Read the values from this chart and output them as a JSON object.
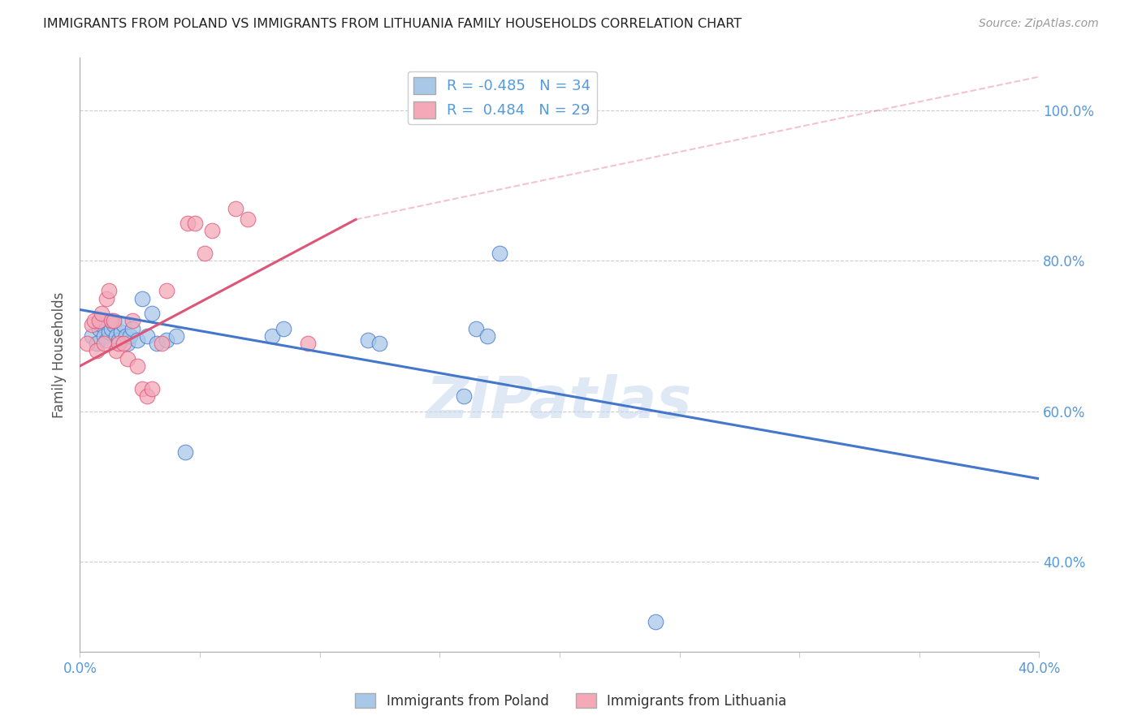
{
  "title": "IMMIGRANTS FROM POLAND VS IMMIGRANTS FROM LITHUANIA FAMILY HOUSEHOLDS CORRELATION CHART",
  "source": "Source: ZipAtlas.com",
  "ylabel": "Family Households",
  "legend_poland": "Immigrants from Poland",
  "legend_lithuania": "Immigrants from Lithuania",
  "R_poland": -0.485,
  "N_poland": 34,
  "R_lithuania": 0.484,
  "N_lithuania": 29,
  "xlim": [
    0.0,
    0.4
  ],
  "ylim": [
    0.28,
    1.07
  ],
  "yticks": [
    0.4,
    0.6,
    0.8,
    1.0
  ],
  "xticks": [
    0.0,
    0.05,
    0.1,
    0.15,
    0.2,
    0.25,
    0.3,
    0.35,
    0.4
  ],
  "color_poland": "#a8c8e8",
  "color_lithuania": "#f4a8b8",
  "color_trend_poland": "#4477cc",
  "color_trend_lithuania": "#dd5577",
  "color_axis_labels": "#5599dd",
  "poland_x": [
    0.005,
    0.007,
    0.008,
    0.009,
    0.01,
    0.011,
    0.012,
    0.013,
    0.014,
    0.015,
    0.016,
    0.017,
    0.018,
    0.019,
    0.02,
    0.021,
    0.022,
    0.024,
    0.026,
    0.028,
    0.03,
    0.032,
    0.036,
    0.04,
    0.044,
    0.08,
    0.085,
    0.12,
    0.125,
    0.16,
    0.165,
    0.17,
    0.175,
    0.24
  ],
  "poland_y": [
    0.7,
    0.69,
    0.71,
    0.715,
    0.7,
    0.695,
    0.705,
    0.71,
    0.715,
    0.7,
    0.695,
    0.705,
    0.715,
    0.7,
    0.69,
    0.7,
    0.71,
    0.695,
    0.75,
    0.7,
    0.73,
    0.69,
    0.695,
    0.7,
    0.545,
    0.7,
    0.71,
    0.695,
    0.69,
    0.62,
    0.71,
    0.7,
    0.81,
    0.32
  ],
  "lithuania_x": [
    0.003,
    0.005,
    0.006,
    0.007,
    0.008,
    0.009,
    0.01,
    0.011,
    0.012,
    0.013,
    0.014,
    0.015,
    0.016,
    0.018,
    0.02,
    0.022,
    0.024,
    0.026,
    0.028,
    0.03,
    0.034,
    0.036,
    0.045,
    0.048,
    0.052,
    0.055,
    0.065,
    0.07,
    0.095
  ],
  "lithuania_y": [
    0.69,
    0.715,
    0.72,
    0.68,
    0.72,
    0.73,
    0.69,
    0.75,
    0.76,
    0.72,
    0.72,
    0.68,
    0.69,
    0.69,
    0.67,
    0.72,
    0.66,
    0.63,
    0.62,
    0.63,
    0.69,
    0.76,
    0.85,
    0.85,
    0.81,
    0.84,
    0.87,
    0.855,
    0.69
  ],
  "trend_poland_x0": 0.0,
  "trend_poland_y0": 0.735,
  "trend_poland_x1": 0.4,
  "trend_poland_y1": 0.51,
  "trend_lith_solid_x0": 0.0,
  "trend_lith_solid_y0": 0.66,
  "trend_lith_solid_x1": 0.115,
  "trend_lith_solid_y1": 0.855,
  "trend_lith_dash_x0": 0.115,
  "trend_lith_dash_y0": 0.855,
  "trend_lith_dash_x1": 0.4,
  "trend_lith_dash_y1": 1.045
}
